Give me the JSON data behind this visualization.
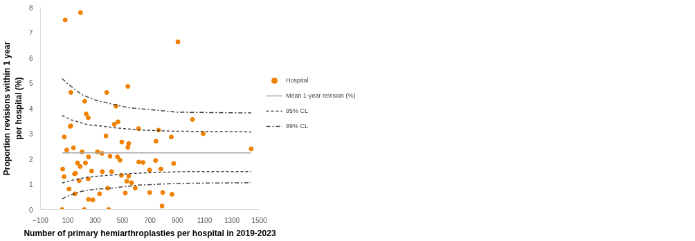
{
  "chart_data": {
    "type": "scatter",
    "xlabel": "Number of primary hemiarthroplasties per hospital in 2019-2023",
    "ylabel": "Proportion revisions within 1 year per hospital (%)",
    "xlim": [
      -100,
      1500
    ],
    "xticks": [
      -100,
      100,
      300,
      500,
      700,
      900,
      1100,
      1300,
      1500
    ],
    "ylim": [
      0,
      8
    ],
    "yticks": [
      0,
      1,
      2,
      3,
      4,
      5,
      6,
      7,
      8
    ],
    "legend": "right",
    "series": [
      {
        "name": "Hospital",
        "marker": "circle",
        "color": "#f08000",
        "x": [
          58,
          62,
          81,
          72,
          74,
          92,
          109,
          117,
          122,
          122,
          141,
          149,
          156,
          152,
          171,
          182,
          190,
          193,
          204,
          223,
          220,
          229,
          234,
          249,
          249,
          251,
          251,
          274,
          283,
          317,
          332,
          350,
          352,
          379,
          384,
          392,
          398,
          409,
          420,
          440,
          452,
          463,
          467,
          482,
          492,
          495,
          520,
          531,
          539,
          539,
          545,
          545,
          566,
          593,
          617,
          619,
          650,
          698,
          699,
          742,
          745,
          764,
          781,
          789,
          794,
          857,
          862,
          874,
          905,
          1012,
          1090,
          1441
        ],
        "values": [
          0,
          1.6,
          7.5,
          1.3,
          2.87,
          2.35,
          0.81,
          3.29,
          3.31,
          4.63,
          2.44,
          1.41,
          1.43,
          0.62,
          1.84,
          1.14,
          1.7,
          7.79,
          2.28,
          4.28,
          0,
          1.84,
          3.78,
          3.63,
          1.21,
          2.08,
          0.4,
          1.52,
          0.38,
          2.28,
          0.62,
          2.22,
          1.5,
          2.91,
          4.63,
          0.84,
          0,
          2.11,
          1.5,
          3.37,
          4.09,
          2.08,
          3.47,
          1.95,
          1.35,
          2.67,
          0.65,
          1.12,
          2.46,
          4.87,
          2.61,
          1.32,
          1.06,
          0.85,
          3.2,
          1.88,
          1.86,
          1.56,
          0.67,
          1.94,
          2.7,
          3.14,
          1.6,
          0.14,
          0.67,
          2.87,
          0.6,
          1.82,
          6.63,
          3.56,
          3.0,
          2.4
        ]
      },
      {
        "name": "Mean 1-year revision (%)",
        "type": "line",
        "color": "#a6a6a6",
        "line_style": "solid",
        "x": [
          58,
          1441
        ],
        "values": [
          2.24,
          2.24
        ]
      },
      {
        "name": "95% CL",
        "type": "line",
        "color": "#404040",
        "line_style": "dashed",
        "x": [
          58,
          122,
          249,
          350,
          467,
          617,
          850,
          1441,
          null,
          58,
          149,
          249,
          392,
          550,
          750,
          1000,
          1441
        ],
        "values": [
          3.72,
          3.55,
          3.35,
          3.3,
          3.22,
          3.15,
          3.1,
          3.07,
          null,
          1.05,
          1.18,
          1.28,
          1.35,
          1.42,
          1.47,
          1.5,
          1.5
        ]
      },
      {
        "name": "99% CL",
        "type": "line",
        "color": "#404040",
        "line_style": "dashdot",
        "x": [
          58,
          100,
          200,
          300,
          400,
          550,
          700,
          900,
          1441,
          null,
          58,
          100,
          200,
          300,
          450,
          600,
          800,
          1000,
          1441
        ],
        "values": [
          5.18,
          4.97,
          4.55,
          4.33,
          4.2,
          4.02,
          3.95,
          3.85,
          3.82,
          null,
          0.42,
          0.53,
          0.72,
          0.8,
          0.86,
          0.96,
          1.01,
          1.04,
          1.06
        ]
      }
    ]
  }
}
